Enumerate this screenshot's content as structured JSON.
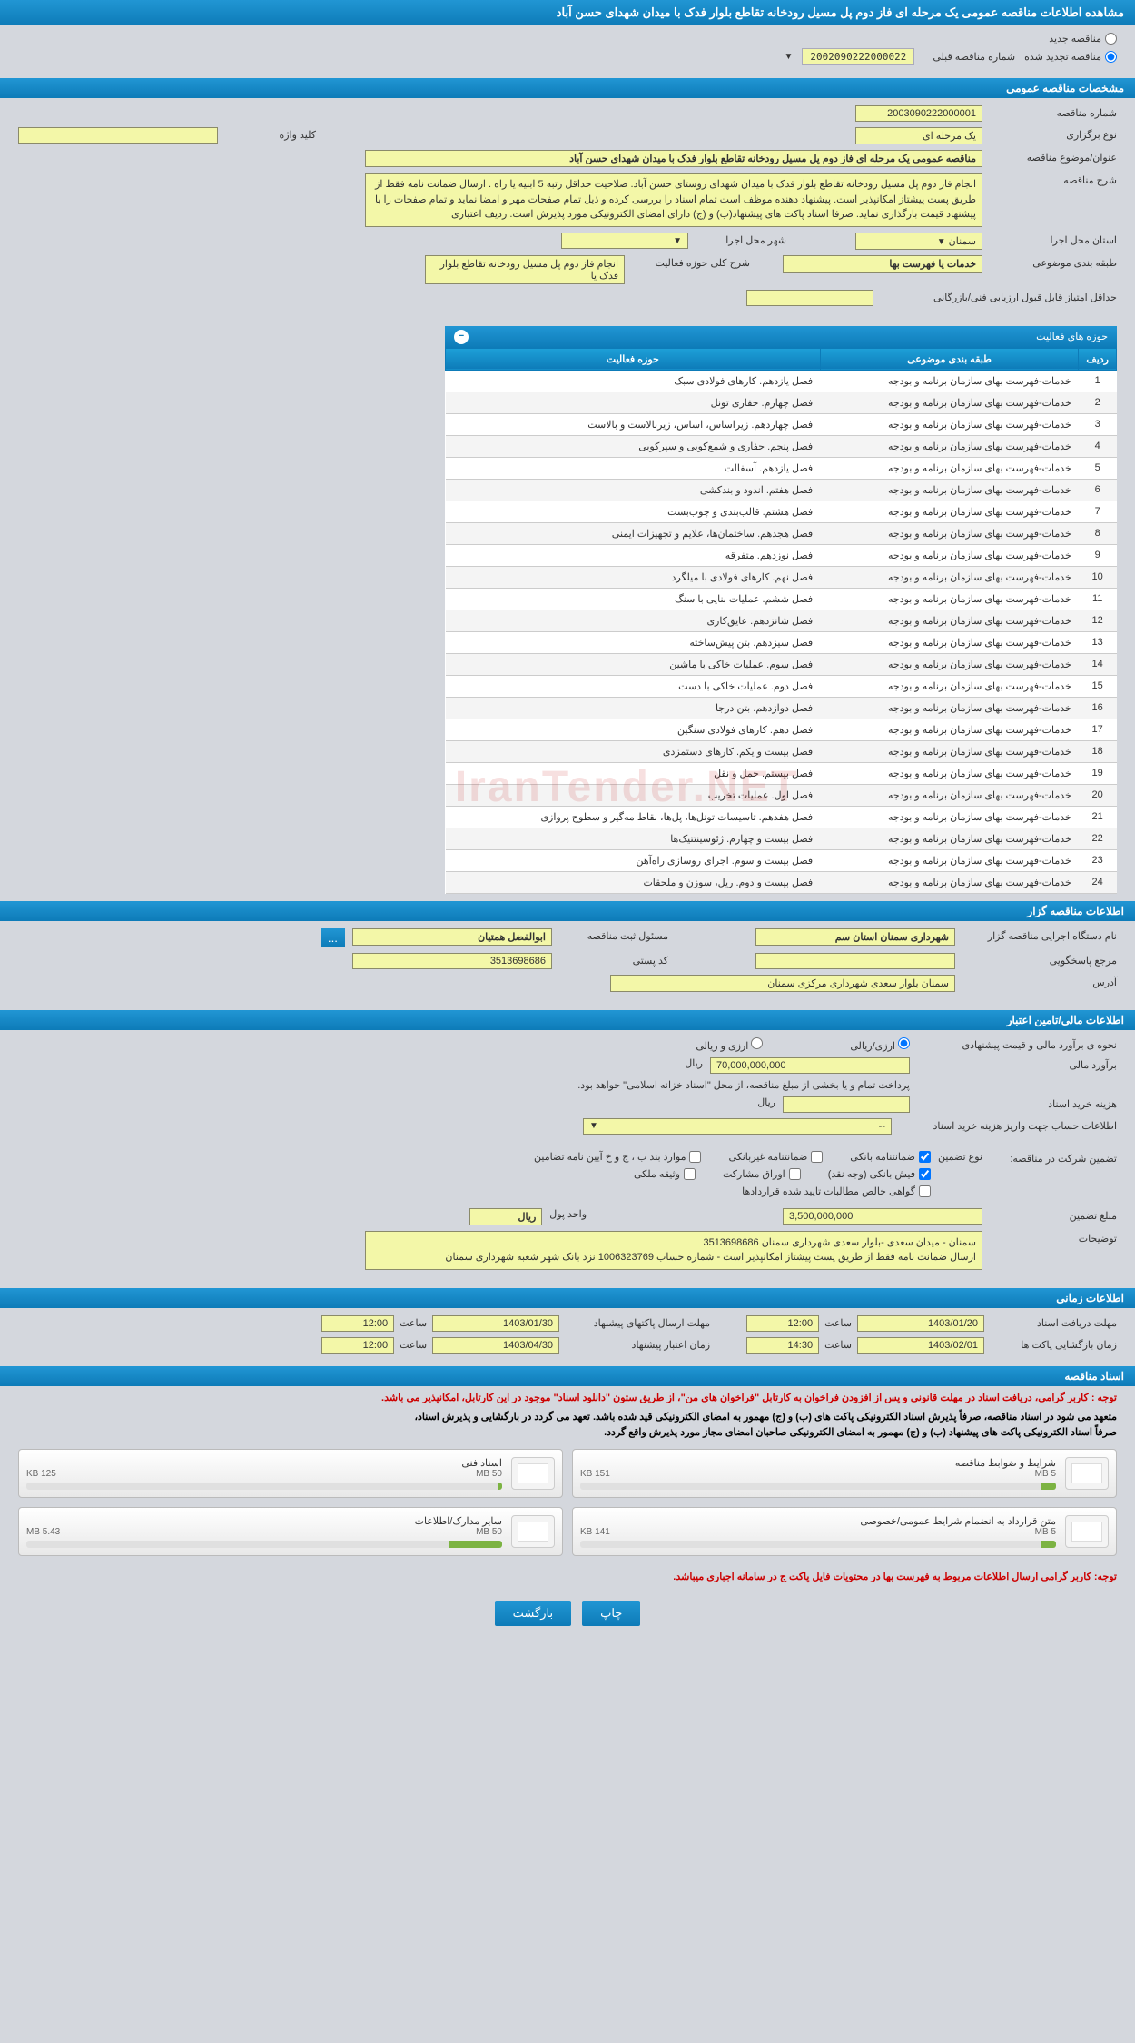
{
  "header": {
    "title": "مشاهده اطلاعات مناقصه عمومی یک مرحله ای فاز دوم پل مسیل رودخانه تقاطع بلوار فدک با میدان شهدای حسن آباد"
  },
  "top_options": {
    "new_tender": "مناقصه جدید",
    "renewed_tender": "مناقصه تجدید شده",
    "prev_number_label": "شماره مناقصه قبلی",
    "prev_number": "2002090222000022"
  },
  "sections": {
    "spec": "مشخصات مناقصه عمومی",
    "activities": "حوزه های فعالیت",
    "organizer": "اطلاعات مناقصه گزار",
    "financial": "اطلاعات مالی/تامین اعتبار",
    "timing": "اطلاعات زمانی",
    "documents": "اسناد مناقصه"
  },
  "spec": {
    "tender_no_label": "شماره مناقصه",
    "tender_no": "2003090222000001",
    "type_label": "نوع برگزاری",
    "type": "یک مرحله ای",
    "keyword_label": "کلید واژه",
    "keyword": "",
    "subject_label": "عنوان/موضوع مناقصه",
    "subject": "مناقصه عمومی یک مرحله ای  فاز دوم پل مسیل رودخانه تقاطع بلوار فدک با میدان شهدای حسن آباد",
    "desc_label": "شرح مناقصه",
    "desc": "انجام فاز دوم پل مسیل رودخانه تقاطع بلوار فدک با میدان شهدای روستای حسن آباد.  صلاحیت حداقل رتبه 5 ابنیه یا راه . ارسال ضمانت نامه فقط از طریق پست پیشتاز امکانپذیر است. پیشنهاد دهنده موظف است تمام اسناد را بررسی کرده و ذیل تمام صفحات مهر و امضا نماید و تمام صفحات را با پیشنهاد قیمت بارگذاری نماید. صرفا اسناد پاکت های پیشنهاد(ب) و (ج) دارای امضای الکترونیکی مورد پذیرش است. ردیف اعتباری",
    "exec_province_label": "استان محل اجرا",
    "exec_province": "سمنان",
    "exec_city_label": "شهر محل اجرا",
    "exec_city": "",
    "category_label": "طبقه بندی موضوعی",
    "category": "خدمات یا فهرست بها",
    "activity_scope_label": "شرح کلی حوزه فعالیت",
    "activity_scope": "انجام فاز دوم پل مسیل رودخانه تقاطع بلوار فدک یا",
    "min_score_label": "حداقل امتیاز قابل قبول ارزیابی فنی/بازرگانی",
    "min_score": ""
  },
  "activity_table": {
    "col_row": "ردیف",
    "col_category": "طبقه بندی موضوعی",
    "col_scope": "حوزه فعالیت",
    "base_category": "خدمات-فهرست بهای سازمان برنامه و بودجه",
    "rows": [
      {
        "n": "1",
        "scope": "فصل یازدهم. کارهای فولادی سبک"
      },
      {
        "n": "2",
        "scope": "فصل چهارم. حفاری تونل"
      },
      {
        "n": "3",
        "scope": "فصل چهاردهم. زیراساس، اساس، زیربالاست  و بالاست"
      },
      {
        "n": "4",
        "scope": "فصل پنجم. حفاری و شمع‌کوبی و سپرکوبی"
      },
      {
        "n": "5",
        "scope": "فصل یازدهم. آسفالت"
      },
      {
        "n": "6",
        "scope": "فصل هفتم. اندود و بندکشی"
      },
      {
        "n": "7",
        "scope": "فصل هشتم. قالب‌بندی و چوب‌بست"
      },
      {
        "n": "8",
        "scope": "فصل هجدهم. ساختمان‌ها، علایم و تجهیزات ایمنی"
      },
      {
        "n": "9",
        "scope": "فصل نوزدهم. متفرقه"
      },
      {
        "n": "10",
        "scope": "فصل نهم. کارهای فولادی با میلگرد"
      },
      {
        "n": "11",
        "scope": "فصل ششم. عملیات بنایی با سنگ"
      },
      {
        "n": "12",
        "scope": "فصل شانزدهم. عایق‌کاری"
      },
      {
        "n": "13",
        "scope": "فصل سیزدهم. بتن پیش‌ساخته"
      },
      {
        "n": "14",
        "scope": "فصل سوم. عملیات خاکی با ماشین"
      },
      {
        "n": "15",
        "scope": "فصل دوم. عملیات خاکی با دست"
      },
      {
        "n": "16",
        "scope": "فصل دوازدهم. بتن درجا"
      },
      {
        "n": "17",
        "scope": "فصل دهم. کارهای فولادی سنگین"
      },
      {
        "n": "18",
        "scope": "فصل بیست و یکم. کارهای دستمزدی"
      },
      {
        "n": "19",
        "scope": "فصل بیستم. حمل و نقل"
      },
      {
        "n": "20",
        "scope": "فصل اول. عملیات تخریب"
      },
      {
        "n": "21",
        "scope": "فصل هفدهم. تاسیسات تونل‌ها، پل‌ها، نقاط مه‌گیر و سطوح پروازی"
      },
      {
        "n": "22",
        "scope": "فصل بیست و چهارم. ژئوسینتتیک‌ها"
      },
      {
        "n": "23",
        "scope": "فصل بیست و سوم. اجرای روسازی راه‌آهن"
      },
      {
        "n": "24",
        "scope": "فصل بیست و دوم. ریل، سوزن و ملحقات"
      }
    ]
  },
  "organizer": {
    "name_label": "نام دستگاه اجرایی مناقصه گزار",
    "name": "شهرداری سمنان استان سم",
    "manager_label": "مسئول ثبت مناقصه",
    "manager": "ابوالفضل همتیان",
    "more": "...",
    "contact_label": "مرجع پاسخگویی",
    "contact": "",
    "postal_label": "کد پستی",
    "postal": "3513698686",
    "address_label": "آدرس",
    "address": "سمنان بلوار سعدی شهرداری مرکزی سمنان"
  },
  "financial": {
    "estimate_method_label": "نحوه ی برآورد مالی و قیمت پیشنهادی",
    "opt_arzi_riali": "ارزی/ریالی",
    "opt_arzi_o_riali": "ارزی و ریالی",
    "estimate_label": "برآورد مالی",
    "estimate_value": "70,000,000,000",
    "currency": "ریال",
    "payment_note": "پرداخت تمام و یا بخشی از مبلغ مناقصه، از محل \"اسناد خزانه اسلامی\" خواهد بود.",
    "doc_cost_label": "هزینه خرید اسناد",
    "doc_cost_value": "",
    "account_label": "اطلاعات حساب جهت واریز هزینه خرید اسناد",
    "account_value": "--",
    "guarantee_label": "تضمین شرکت در مناقصه:",
    "guarantee_type_label": "نوع تضمین",
    "chk_bank": "ضمانتنامه بانکی",
    "chk_nonbank": "ضمانتنامه غیربانکی",
    "chk_items": "موارد بند ب ، ج و خ آیین نامه تضامین",
    "chk_fish": "فیش بانکی (وجه نقد)",
    "chk_bond": "اوراق مشارکت",
    "chk_property": "وثیقه ملکی",
    "chk_certificate": "گواهی خالص مطالبات تایید شده قراردادها",
    "guarantee_amount_label": "مبلغ تضمین",
    "guarantee_amount": "3,500,000,000",
    "unit_label": "واحد پول",
    "unit_value": "ریال",
    "notes_label": "توضیحات",
    "notes": "سمنان - میدان سعدی -بلوار سعدی  شهرداری سمنان 3513698686\nارسال ضمانت نامه فقط از طریق پست پیشتاز امکانپذیر است - شماره حساب 1006323769 نزد بانک شهر شعبه شهرداری سمنان"
  },
  "timing": {
    "doc_receive_label": "مهلت دریافت اسناد",
    "doc_receive_date": "1403/01/20",
    "time_label": "ساعت",
    "doc_receive_time": "12:00",
    "proposal_send_label": "مهلت ارسال پاکتهای پیشنهاد",
    "proposal_send_date": "1403/01/30",
    "proposal_send_time": "12:00",
    "open_label": "زمان بازگشایی پاکت ها",
    "open_date": "1403/02/01",
    "open_time": "14:30",
    "validity_label": "زمان اعتبار پیشنهاد",
    "validity_date": "1403/04/30",
    "validity_time": "12:00"
  },
  "notes": {
    "red1": "توجه : کاربر گرامی، دریافت اسناد در مهلت قانونی و پس از افزودن فراخوان به کارتابل \"فراخوان های من\"، از طریق ستون \"دانلود اسناد\" موجود در این کارتابل، امکانپذیر می باشد.",
    "black1": "متعهد می شود در اسناد مناقصه، صرفاً پذیرش اسناد الکترونیکی پاکت های (ب) و (ج) مهمور به امضای الکترونیکی قید شده باشد. تعهد می گردد در بارگشایی و پذیرش اسناد،",
    "black2": "صرفاً اسناد الکترونیکی پاکت های پیشنهاد (ب) و (ج) مهمور به امضای الکترونیکی صاحبان امضای مجاز مورد پذیرش واقع گردد.",
    "red2": "توجه: کاربر گرامی ارسال اطلاعات مربوط به فهرست بها در محتویات فایل پاکت ج در سامانه اجباری میباشد."
  },
  "documents": [
    {
      "title": "شرایط و ضوابط مناقصه",
      "size": "151 KB",
      "max": "5 MB",
      "pct": 3
    },
    {
      "title": "اسناد فنی",
      "size": "125 KB",
      "max": "50 MB",
      "pct": 1
    },
    {
      "title": "متن قرارداد به انضمام شرایط عمومی/خصوصی",
      "size": "141 KB",
      "max": "5 MB",
      "pct": 3
    },
    {
      "title": "سایر مدارک/اطلاعات",
      "size": "5.43 MB",
      "max": "50 MB",
      "pct": 11
    }
  ],
  "buttons": {
    "print": "چاپ",
    "back": "بازگشت"
  },
  "watermark": "IranTender.NET"
}
